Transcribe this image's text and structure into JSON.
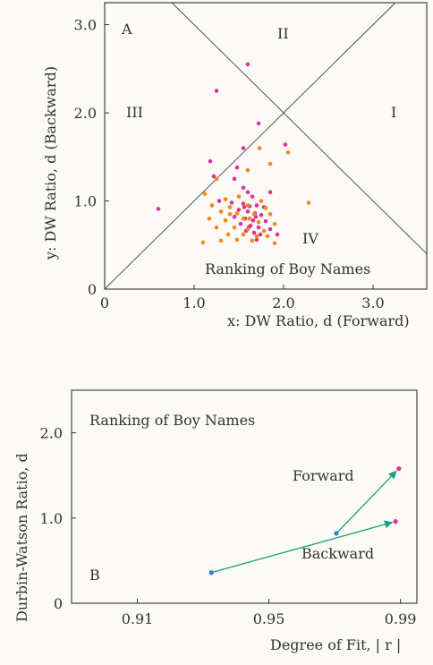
{
  "colors": {
    "magenta": "#e0329a",
    "orange": "#f08a1c",
    "blue": "#2c7fd0",
    "arrow": "#17a27a",
    "axis": "#333333"
  },
  "chart_data": [
    {
      "panel": "A",
      "type": "scatter",
      "title": "Ranking of Boy Names",
      "xlabel": "x: DW Ratio, d (Forward)",
      "ylabel": "y: DW Ratio, d (Backward)",
      "xlim": [
        0,
        3.6
      ],
      "ylim": [
        0,
        3.25
      ],
      "xticks": [
        "0",
        "1.0",
        "2.0",
        "3.0"
      ],
      "yticks": [
        "0",
        "1.0",
        "2.0",
        "3.0"
      ],
      "regions": [
        "I",
        "II",
        "III",
        "IV"
      ],
      "lines": [
        "y = x",
        "y = 4 - x"
      ],
      "series": [
        {
          "color": "magenta",
          "points": [
            [
              1.6,
              2.55
            ],
            [
              1.25,
              2.25
            ],
            [
              1.72,
              1.88
            ],
            [
              2.02,
              1.64
            ],
            [
              1.55,
              1.6
            ],
            [
              1.18,
              1.45
            ],
            [
              1.48,
              1.38
            ],
            [
              1.22,
              1.28
            ],
            [
              1.45,
              1.25
            ],
            [
              1.55,
              1.15
            ],
            [
              1.6,
              1.1
            ],
            [
              1.85,
              1.1
            ],
            [
              1.65,
              1.05
            ],
            [
              1.28,
              1.0
            ],
            [
              1.42,
              0.98
            ],
            [
              1.55,
              0.97
            ],
            [
              1.7,
              0.95
            ],
            [
              1.78,
              0.93
            ],
            [
              1.5,
              0.9
            ],
            [
              1.6,
              0.88
            ],
            [
              1.68,
              0.86
            ],
            [
              1.75,
              0.84
            ],
            [
              1.45,
              0.82
            ],
            [
              1.57,
              0.8
            ],
            [
              1.66,
              0.78
            ],
            [
              1.8,
              0.77
            ],
            [
              1.52,
              0.74
            ],
            [
              1.63,
              0.72
            ],
            [
              1.72,
              0.7
            ],
            [
              1.85,
              0.68
            ],
            [
              1.58,
              0.66
            ],
            [
              1.67,
              0.64
            ],
            [
              1.74,
              0.62
            ],
            [
              1.7,
              0.56
            ],
            [
              0.6,
              0.91
            ],
            [
              1.62,
              0.94
            ],
            [
              1.69,
              0.82
            ],
            [
              1.56,
              0.93
            ],
            [
              1.93,
              0.62
            ],
            [
              1.61,
              0.7
            ]
          ]
        },
        {
          "color": "orange",
          "points": [
            [
              1.73,
              1.6
            ],
            [
              2.05,
              1.55
            ],
            [
              1.85,
              1.42
            ],
            [
              1.6,
              1.35
            ],
            [
              1.25,
              1.25
            ],
            [
              1.12,
              1.08
            ],
            [
              1.35,
              1.02
            ],
            [
              1.5,
              1.05
            ],
            [
              1.75,
              1.0
            ],
            [
              1.2,
              0.95
            ],
            [
              1.4,
              0.93
            ],
            [
              1.6,
              0.95
            ],
            [
              1.8,
              0.92
            ],
            [
              1.3,
              0.88
            ],
            [
              1.48,
              0.86
            ],
            [
              1.67,
              0.85
            ],
            [
              1.85,
              0.85
            ],
            [
              1.17,
              0.8
            ],
            [
              1.35,
              0.78
            ],
            [
              1.55,
              0.8
            ],
            [
              1.72,
              0.76
            ],
            [
              1.9,
              0.74
            ],
            [
              1.25,
              0.7
            ],
            [
              1.45,
              0.7
            ],
            [
              1.6,
              0.68
            ],
            [
              1.78,
              0.66
            ],
            [
              1.38,
              0.62
            ],
            [
              1.55,
              0.62
            ],
            [
              1.7,
              0.6
            ],
            [
              1.48,
              0.56
            ],
            [
              1.65,
              0.55
            ],
            [
              1.1,
              0.53
            ],
            [
              1.3,
              0.55
            ],
            [
              1.9,
              0.52
            ],
            [
              2.28,
              0.98
            ],
            [
              1.82,
              0.6
            ],
            [
              1.4,
              0.85
            ],
            [
              1.62,
              0.8
            ]
          ]
        }
      ]
    },
    {
      "panel": "B",
      "type": "line",
      "title": "Ranking of Boy Names",
      "xlabel": "Degree of Fit, | r |",
      "ylabel": "Durbin-Watson Ratio, d",
      "xlim": [
        0.89,
        0.995
      ],
      "ylim": [
        0,
        2.5
      ],
      "xticks": [
        "0.91",
        "0.95",
        "0.99"
      ],
      "yticks": [
        "0",
        "1.0",
        "2.0"
      ],
      "series": [
        {
          "name": "Forward",
          "points": [
            [
              0.9705,
              0.82
            ],
            [
              0.9895,
              1.58
            ]
          ]
        },
        {
          "name": "Backward",
          "points": [
            [
              0.9325,
              0.36
            ],
            [
              0.9885,
              0.96
            ]
          ]
        }
      ]
    }
  ]
}
